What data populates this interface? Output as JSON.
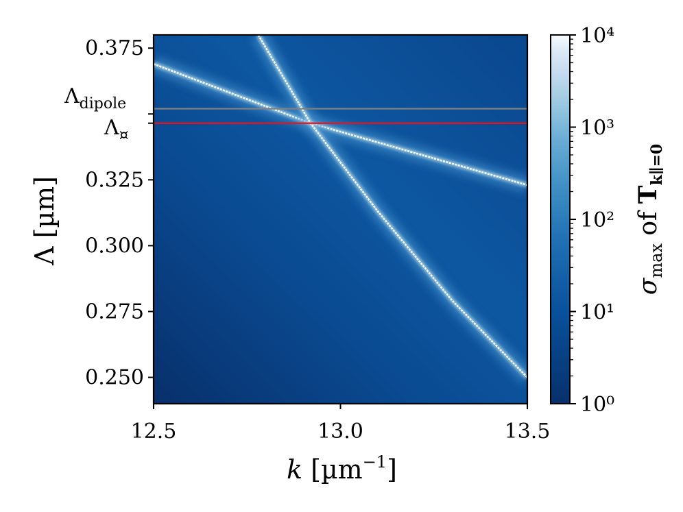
{
  "chart_data": {
    "type": "heatmap",
    "x_range": [
      12.5,
      13.5
    ],
    "y_range": [
      0.24,
      0.38
    ],
    "xticks": [
      12.5,
      13.0,
      13.5
    ],
    "xtick_labels": [
      "12.5",
      "13.0",
      "13.5"
    ],
    "yticks": [
      0.25,
      0.275,
      0.3,
      0.325,
      0.35,
      0.375
    ],
    "ytick_labels": [
      "0.250",
      "0.275",
      "0.300",
      "0.325",
      "",
      "0.375"
    ],
    "xlabel": "k [µm⁻¹]",
    "ylabel": "Λ [µm]",
    "colorbar": {
      "scale": "log",
      "range": [
        1,
        10000
      ],
      "ticks": [
        1,
        10,
        100,
        1000,
        10000
      ],
      "tick_labels": [
        "10⁰",
        "10¹",
        "10²",
        "10³",
        "10⁴"
      ],
      "label": "σ_max of T_k∥=0",
      "colormap": "Blues_r",
      "color_low": "#08306b",
      "color_high": "#f7fbff"
    },
    "reference_lines": [
      {
        "label": "Λ_dipole",
        "y": 0.352,
        "color": "#808080"
      },
      {
        "label": "Λ_¤",
        "y": 0.3465,
        "color": "#e8141c"
      }
    ],
    "resonance_lines": [
      {
        "description": "shallow band",
        "points": [
          [
            12.5,
            0.369
          ],
          [
            12.92,
            0.3465
          ],
          [
            13.5,
            0.323
          ]
        ]
      },
      {
        "description": "steep band",
        "points": [
          [
            12.78,
            0.38
          ],
          [
            12.92,
            0.3465
          ],
          [
            13.1,
            0.313
          ],
          [
            13.3,
            0.279
          ],
          [
            13.5,
            0.25
          ]
        ]
      }
    ]
  },
  "labels": {
    "ylabel_main": "Λ [µm]",
    "xlabel_k": "k",
    "xlabel_units": "[µm",
    "xlabel_exp": "−1",
    "xlabel_close": "]",
    "ref_dipole_main": "Λ",
    "ref_dipole_sub": "dipole",
    "ref_red_main": "Λ",
    "ref_red_sub": "¤",
    "cb_sigma": "σ",
    "cb_sub": "max",
    "cb_of": " of ",
    "cb_T": "T",
    "cb_T_sub": "k∥=0"
  }
}
